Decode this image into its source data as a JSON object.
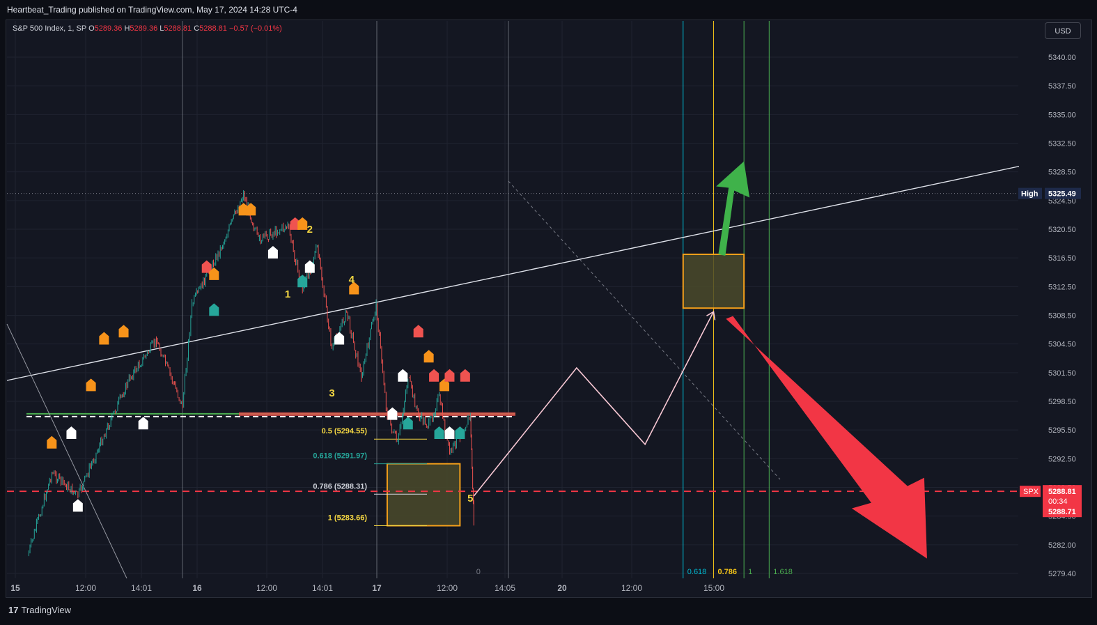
{
  "header": {
    "publisher": "Heartbeat_Trading published on TradingView.com, May 17, 2024 14:28 UTC-4"
  },
  "symbol_bar": {
    "name": "S&P 500 Index, 1, SP",
    "open_label": "O",
    "open": "5289.36",
    "high_label": "H",
    "high": "5289.36",
    "low_label": "L",
    "low": "5288.81",
    "close_label": "C",
    "close": "5288.81",
    "change": "−0.57 (−0.01%)"
  },
  "currency_button": "USD",
  "footer": {
    "logo_glyph": "17",
    "logo_text": "TradingView"
  },
  "colors": {
    "background": "#141722",
    "up": "#26a69a",
    "down": "#ef5350",
    "orange": "#f7931a",
    "target_up": "#3fb24a",
    "target_down": "#f23645",
    "zone_fill": "#4a4a2a",
    "zone_border": "#f5a01a"
  },
  "chart_data": {
    "type": "line",
    "title": "",
    "xlabel": "",
    "ylabel": "",
    "ylim": [
      5279.4,
      5341.2
    ],
    "y_ticks": [
      "5340.00",
      "5337.50",
      "5335.00",
      "5332.50",
      "5328.50",
      "5324.50",
      "5320.50",
      "5316.50",
      "5312.50",
      "5308.50",
      "5304.50",
      "5301.50",
      "5298.50",
      "5295.50",
      "5292.50",
      "5289.50",
      "5284.50",
      "5282.00",
      "5279.40"
    ],
    "x_ticks": [
      "15",
      "12:00",
      "14:01",
      "16",
      "12:00",
      "14:01",
      "17",
      "12:00",
      "14:05",
      "20",
      "12:00",
      "15:00"
    ],
    "series": [
      {
        "x": [
          "15 10:05",
          "15 11:00",
          "15 12:00",
          "15 13:00",
          "15 14:00",
          "15 15:00",
          "15 16:00",
          "16 09:45",
          "16 10:45",
          "16 11:30",
          "16 12:00",
          "16 13:00",
          "16 13:30",
          "16 14:00",
          "16 14:30",
          "16 15:00",
          "16 15:30",
          "16 16:00",
          "17 10:00",
          "17 10:30",
          "17 11:00",
          "17 11:30",
          "17 12:00",
          "17 12:30",
          "17 13:00",
          "17 13:30",
          "17 14:00",
          "17 14:10"
        ],
        "values": [
          5281,
          5291,
          5288,
          5295,
          5301,
          5305,
          5298,
          5310,
          5318,
          5325.49,
          5319,
          5321,
          5312,
          5318,
          5304,
          5309,
          5301,
          5310,
          5297,
          5294,
          5301,
          5297,
          5296,
          5299,
          5293,
          5295,
          5297,
          5284
        ]
      }
    ],
    "price_markers": {
      "high_label": "High",
      "high": "5325.49",
      "symbol": "SPX",
      "last": "5288.81",
      "countdown": "00:34",
      "bid": "5288.71"
    },
    "fib_retracement": [
      {
        "label": "0.5 (5294.55)",
        "level": 5294.55
      },
      {
        "label": "0.618 (5291.97)",
        "level": 5291.97
      },
      {
        "label": "0.786 (5288.31)",
        "level": 5288.31
      },
      {
        "label": "1 (5283.66)",
        "level": 5283.66
      }
    ],
    "fib_time_zones": [
      {
        "label": "0",
        "x": "17 14:05"
      },
      {
        "label": "0.618",
        "x": "20 13:30"
      },
      {
        "label": "0.786",
        "x": "20 14:30"
      },
      {
        "label": "1",
        "x": "20 15:30"
      },
      {
        "label": "1.618",
        "x": "21 09:45"
      }
    ],
    "wave_labels": [
      {
        "label": "1",
        "x": "16 13:00",
        "y": 5311
      },
      {
        "label": "2",
        "x": "16 13:45",
        "y": 5320
      },
      {
        "label": "3",
        "x": "16 14:30",
        "y": 5299
      },
      {
        "label": "4",
        "x": "16 15:10",
        "y": 5313
      },
      {
        "label": "5",
        "x": "17 14:00",
        "y": 5287
      }
    ],
    "annotations": [
      {
        "type": "box",
        "name": "support-zone",
        "x": [
          "17 10:00",
          "17 13:30"
        ],
        "y": [
          5283.66,
          5291.97
        ]
      },
      {
        "type": "box",
        "name": "target-zone",
        "x": [
          "20 13:30",
          "20 15:30"
        ],
        "y": [
          5309.5,
          5317
        ]
      },
      {
        "type": "path",
        "name": "projection",
        "points": [
          [
            "17 14:10",
            5288
          ],
          [
            "20 10:00",
            5302
          ],
          [
            "20 12:15",
            5294
          ],
          [
            "20 14:30",
            5309
          ]
        ]
      },
      {
        "type": "arrow",
        "name": "up-arrow",
        "from": [
          "20 14:45",
          5317
        ],
        "to": [
          "20 15:30",
          5329
        ]
      },
      {
        "type": "arrow",
        "name": "down-arrow",
        "from": [
          "20 15:00",
          5308
        ],
        "to": [
          "21 13:30",
          5281
        ]
      },
      {
        "type": "trendline",
        "name": "rising-trendline",
        "from": [
          "15 09:30",
          5301
        ],
        "to": [
          "21 16:00",
          5327
        ]
      }
    ],
    "grid": true,
    "legend": "none"
  }
}
